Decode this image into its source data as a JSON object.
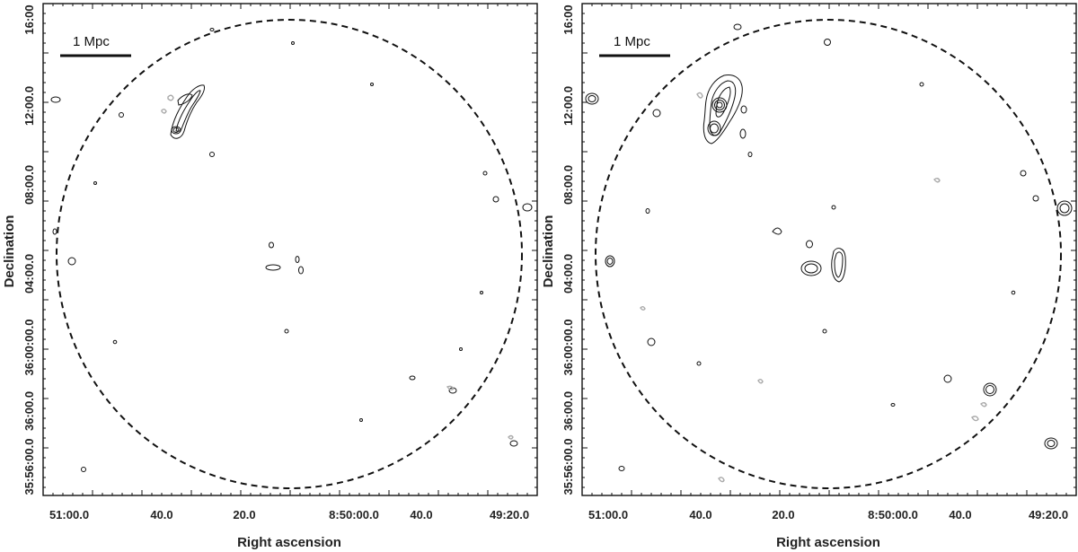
{
  "panels": [
    {
      "id": "left",
      "scale_bar_label": "1 Mpc",
      "xlabel": "Right ascension",
      "ylabel": "Declination",
      "x_ticks": [
        "51:00.0",
        "40.0",
        "20.0",
        "8:50:00.0",
        "40.0",
        "49:20.0"
      ],
      "y_ticks": [
        "16:00",
        "12:00.0",
        "08:00.0",
        "04:00.0",
        "36:00:00.0",
        "36:00.0",
        "35:56:00.0"
      ]
    },
    {
      "id": "right",
      "scale_bar_label": "1 Mpc",
      "xlabel": "Right ascension",
      "ylabel": "Declination",
      "x_ticks": [
        "51:00.0",
        "40.0",
        "20.0",
        "8:50:00.0",
        "40.0",
        "49:20.0"
      ],
      "y_ticks": [
        "16:00",
        "12:00.0",
        "08:00.0",
        "04:00.0",
        "36:00:00.0",
        "36:00.0",
        "35:56:00.0"
      ]
    }
  ]
}
